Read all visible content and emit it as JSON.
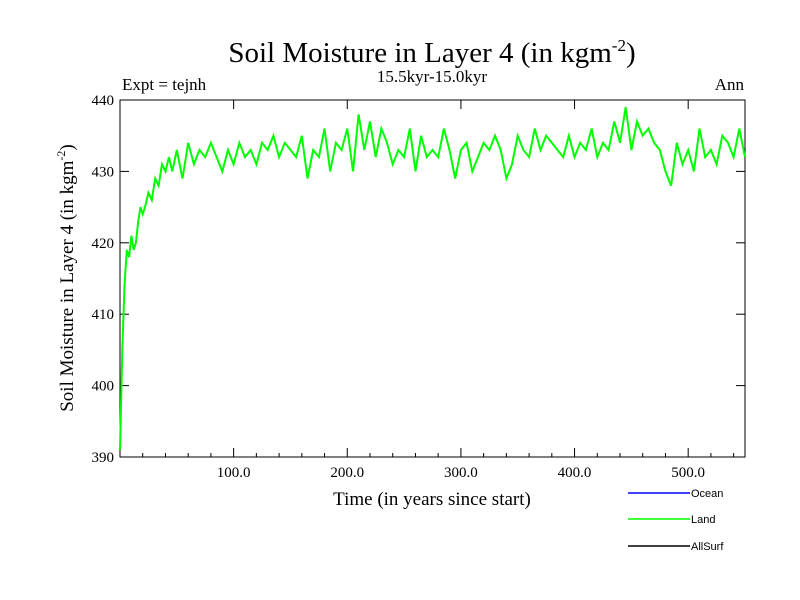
{
  "chart_data": {
    "type": "line",
    "title": "Soil Moisture in Layer 4 (in kgm",
    "title_sup": "-2",
    "title_close": ")",
    "subtitle": "15.5kyr-15.0kyr",
    "left_label": "Expt = tejnh",
    "right_label": "Ann",
    "xlabel": "Time (in years since start)",
    "ylabel": "Soil Moisture in Layer 4 (in kgm",
    "ylabel_sup": "-2",
    "ylabel_close": ")",
    "xlim": [
      0,
      550
    ],
    "ylim": [
      390,
      440
    ],
    "xticks": [
      100,
      200,
      300,
      400,
      500
    ],
    "xtick_labels": [
      "100.0",
      "200.0",
      "300.0",
      "400.0",
      "500.0"
    ],
    "yticks": [
      390,
      400,
      410,
      420,
      430,
      440
    ],
    "ytick_labels": [
      "390",
      "400",
      "410",
      "420",
      "430",
      "440"
    ],
    "legend_position": "bottom-right",
    "series": [
      {
        "name": "Ocean",
        "color": "#0000ff",
        "x": [],
        "values": []
      },
      {
        "name": "Land",
        "color": "#00ff00",
        "x": [
          0,
          2,
          4,
          6,
          8,
          10,
          12,
          14,
          16,
          18,
          20,
          22,
          25,
          28,
          31,
          34,
          37,
          40,
          43,
          46,
          50,
          55,
          60,
          65,
          70,
          75,
          80,
          85,
          90,
          95,
          100,
          105,
          110,
          115,
          120,
          125,
          130,
          135,
          140,
          145,
          150,
          155,
          160,
          165,
          170,
          175,
          180,
          185,
          190,
          195,
          200,
          205,
          210,
          215,
          220,
          225,
          230,
          235,
          240,
          245,
          250,
          255,
          260,
          265,
          270,
          275,
          280,
          285,
          290,
          295,
          300,
          305,
          310,
          315,
          320,
          325,
          330,
          335,
          340,
          345,
          350,
          355,
          360,
          365,
          370,
          375,
          380,
          385,
          390,
          395,
          400,
          405,
          410,
          415,
          420,
          425,
          430,
          435,
          440,
          445,
          450,
          455,
          460,
          465,
          470,
          475,
          480,
          485,
          490,
          495,
          500,
          505,
          510,
          515,
          520,
          525,
          530,
          535,
          540,
          545,
          550
        ],
        "values": [
          391,
          405,
          414,
          419,
          418,
          421,
          419,
          420,
          423,
          425,
          424,
          425,
          427,
          426,
          429,
          428,
          431,
          430,
          432,
          430,
          433,
          429,
          434,
          431,
          433,
          432,
          434,
          432,
          430,
          433,
          431,
          434,
          432,
          433,
          431,
          434,
          433,
          435,
          432,
          434,
          433,
          432,
          435,
          429,
          433,
          432,
          436,
          430,
          434,
          433,
          436,
          430,
          438,
          433,
          437,
          432,
          436,
          434,
          431,
          433,
          432,
          436,
          430,
          435,
          432,
          433,
          432,
          436,
          433,
          429,
          433,
          434,
          430,
          432,
          434,
          433,
          435,
          433,
          429,
          431,
          435,
          433,
          432,
          436,
          433,
          435,
          434,
          433,
          432,
          435,
          432,
          434,
          433,
          436,
          432,
          434,
          433,
          437,
          434,
          439,
          433,
          437,
          435,
          436,
          434,
          433,
          430,
          428,
          434,
          431,
          433,
          430,
          436,
          432,
          433,
          431,
          435,
          434,
          432,
          436,
          432
        ]
      },
      {
        "name": "AllSurf",
        "color": "#000000",
        "x": [],
        "values": []
      }
    ]
  }
}
